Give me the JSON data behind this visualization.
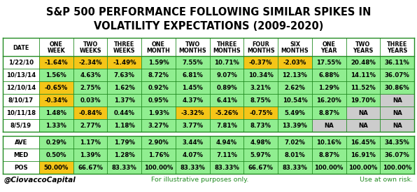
{
  "title_line1": "S&P 500 PERFORMANCE FOLLOWING SIMILAR SPIKES IN",
  "title_line2": "VOLATILITY EXPECTATIONS (2009-2020)",
  "title_color": "#000000",
  "title_fontsize": 10.5,
  "background_color": "#ffffff",
  "header_row1": [
    "",
    "ONE",
    "TWO",
    "THREE",
    "ONE",
    "TWO",
    "THREE",
    "FOUR",
    "SIX",
    "ONE",
    "TWO",
    "THREE"
  ],
  "header_row2": [
    "DATE",
    "WEEK",
    "WEEKS",
    "WEEKS",
    "MONTH",
    "MONTHS",
    "MONTHS",
    "MONTHS",
    "MONTHS",
    "YEAR",
    "YEARS",
    "YEARS"
  ],
  "data_rows": [
    [
      "1/22/10",
      "-1.64%",
      "-2.34%",
      "-1.49%",
      "1.59%",
      "7.55%",
      "10.71%",
      "-0.37%",
      "-2.03%",
      "17.55%",
      "20.48%",
      "36.11%"
    ],
    [
      "10/13/14",
      "1.56%",
      "4.63%",
      "7.63%",
      "8.72%",
      "6.81%",
      "9.07%",
      "10.34%",
      "12.13%",
      "6.88%",
      "14.11%",
      "36.07%"
    ],
    [
      "12/10/14",
      "-0.65%",
      "2.75%",
      "1.62%",
      "0.92%",
      "1.45%",
      "0.89%",
      "3.21%",
      "2.62%",
      "1.29%",
      "11.52%",
      "30.86%"
    ],
    [
      "8/10/17",
      "-0.34%",
      "0.03%",
      "1.37%",
      "0.95%",
      "4.37%",
      "6.41%",
      "8.75%",
      "10.54%",
      "16.20%",
      "19.70%",
      "NA"
    ],
    [
      "10/11/18",
      "1.48%",
      "-0.84%",
      "0.44%",
      "1.93%",
      "-3.32%",
      "-5.26%",
      "-0.75%",
      "5.49%",
      "8.87%",
      "NA",
      "NA"
    ],
    [
      "8/5/19",
      "1.33%",
      "2.77%",
      "1.18%",
      "3.27%",
      "3.77%",
      "7.81%",
      "8.73%",
      "13.39%",
      "NA",
      "NA",
      "NA"
    ]
  ],
  "summary_rows": [
    [
      "AVE",
      "0.29%",
      "1.17%",
      "1.79%",
      "2.90%",
      "3.44%",
      "4.94%",
      "4.98%",
      "7.02%",
      "10.16%",
      "16.45%",
      "34.35%"
    ],
    [
      "MED",
      "0.50%",
      "1.39%",
      "1.28%",
      "1.76%",
      "4.07%",
      "7.11%",
      "5.97%",
      "8.01%",
      "8.87%",
      "16.91%",
      "36.07%"
    ],
    [
      "POS",
      "50.00%",
      "66.67%",
      "83.33%",
      "100.00%",
      "83.33%",
      "83.33%",
      "66.67%",
      "83.33%",
      "100.00%",
      "100.00%",
      "100.00%"
    ]
  ],
  "cell_colors_data": [
    [
      "#f5c518",
      "#f5c518",
      "#f5c518",
      "#90ee90",
      "#90ee90",
      "#90ee90",
      "#f5c518",
      "#f5c518",
      "#90ee90",
      "#90ee90",
      "#90ee90"
    ],
    [
      "#90ee90",
      "#90ee90",
      "#90ee90",
      "#90ee90",
      "#90ee90",
      "#90ee90",
      "#90ee90",
      "#90ee90",
      "#90ee90",
      "#90ee90",
      "#90ee90"
    ],
    [
      "#f5c518",
      "#90ee90",
      "#90ee90",
      "#90ee90",
      "#90ee90",
      "#90ee90",
      "#90ee90",
      "#90ee90",
      "#90ee90",
      "#90ee90",
      "#90ee90"
    ],
    [
      "#f5c518",
      "#90ee90",
      "#90ee90",
      "#90ee90",
      "#90ee90",
      "#90ee90",
      "#90ee90",
      "#90ee90",
      "#90ee90",
      "#90ee90",
      "#cccccc"
    ],
    [
      "#90ee90",
      "#f5c518",
      "#90ee90",
      "#90ee90",
      "#f5c518",
      "#f5c518",
      "#f5c518",
      "#90ee90",
      "#90ee90",
      "#cccccc",
      "#cccccc"
    ],
    [
      "#90ee90",
      "#90ee90",
      "#90ee90",
      "#90ee90",
      "#90ee90",
      "#90ee90",
      "#90ee90",
      "#90ee90",
      "#cccccc",
      "#cccccc",
      "#cccccc"
    ]
  ],
  "cell_colors_summary": [
    [
      "#90ee90",
      "#90ee90",
      "#90ee90",
      "#90ee90",
      "#90ee90",
      "#90ee90",
      "#90ee90",
      "#90ee90",
      "#90ee90",
      "#90ee90",
      "#90ee90"
    ],
    [
      "#90ee90",
      "#90ee90",
      "#90ee90",
      "#90ee90",
      "#90ee90",
      "#90ee90",
      "#90ee90",
      "#90ee90",
      "#90ee90",
      "#90ee90",
      "#90ee90"
    ],
    [
      "#f5c518",
      "#90ee90",
      "#90ee90",
      "#90ee90",
      "#90ee90",
      "#90ee90",
      "#90ee90",
      "#90ee90",
      "#90ee90",
      "#90ee90",
      "#90ee90"
    ]
  ],
  "footer_left": "@CiovaccoCapital",
  "footer_mid": "For illustrative purposes only.",
  "footer_right": "Use at own risk.",
  "grid_color": "#228B22"
}
